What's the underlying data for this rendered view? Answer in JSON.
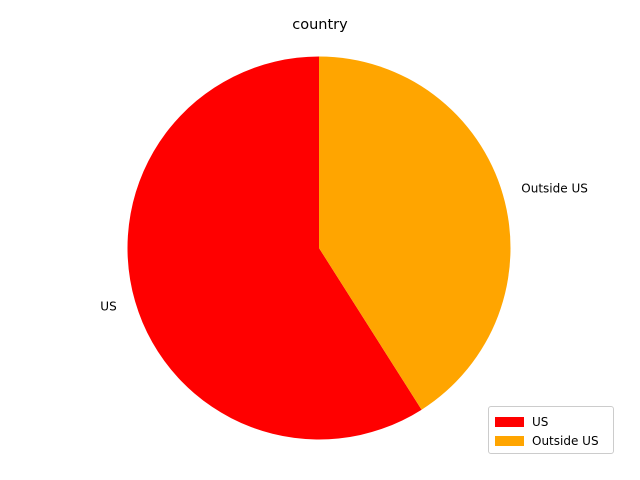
{
  "chart_data": {
    "type": "pie",
    "title": "country",
    "labels": [
      "US",
      "Outside US"
    ],
    "values": [
      59,
      41
    ],
    "colors": [
      "#ff0000",
      "#ffa500"
    ],
    "start_angle_deg": 90,
    "direction": "counterclockwise",
    "legend": {
      "placement": "lower-right",
      "entries": [
        "US",
        "Outside US"
      ]
    }
  }
}
